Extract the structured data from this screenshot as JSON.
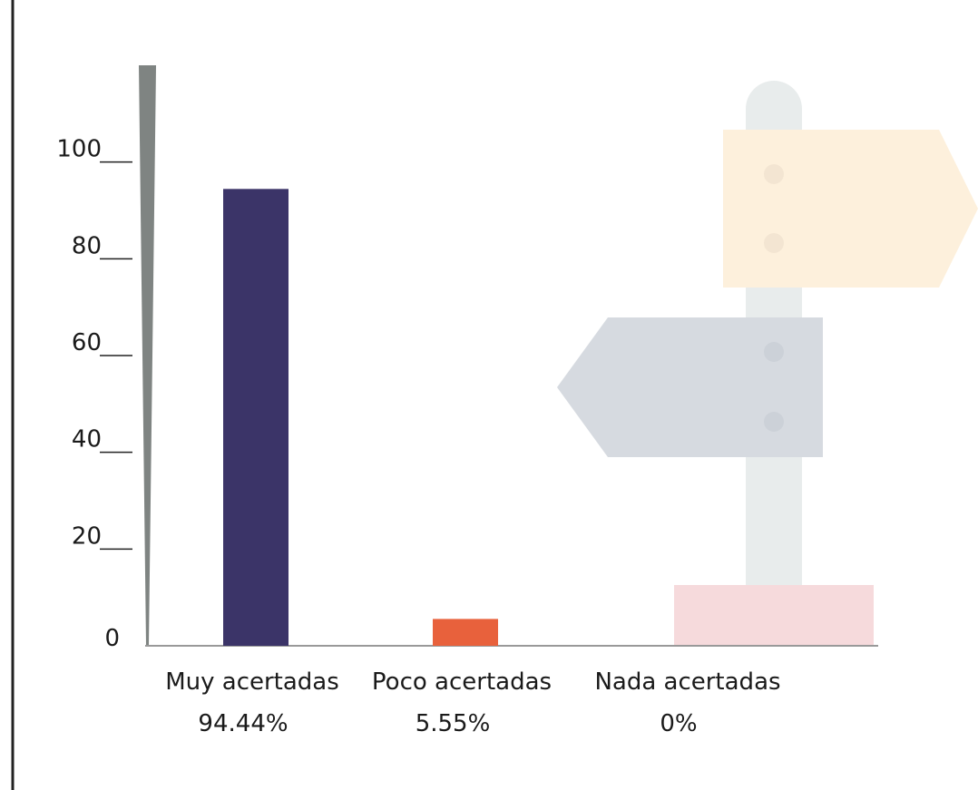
{
  "chart_data": {
    "type": "bar",
    "categories": [
      "Muy acertadas",
      "Poco acertadas",
      "Nada acertadas"
    ],
    "values": [
      94.44,
      5.55,
      0
    ],
    "value_labels": [
      "94.44%",
      "5.55%",
      "0%"
    ],
    "colors": [
      "#3b3468",
      "#e8613c",
      "#9a9a9a"
    ],
    "ylim": [
      0,
      120
    ],
    "yticks": [
      0,
      20,
      40,
      60,
      80,
      100
    ]
  }
}
